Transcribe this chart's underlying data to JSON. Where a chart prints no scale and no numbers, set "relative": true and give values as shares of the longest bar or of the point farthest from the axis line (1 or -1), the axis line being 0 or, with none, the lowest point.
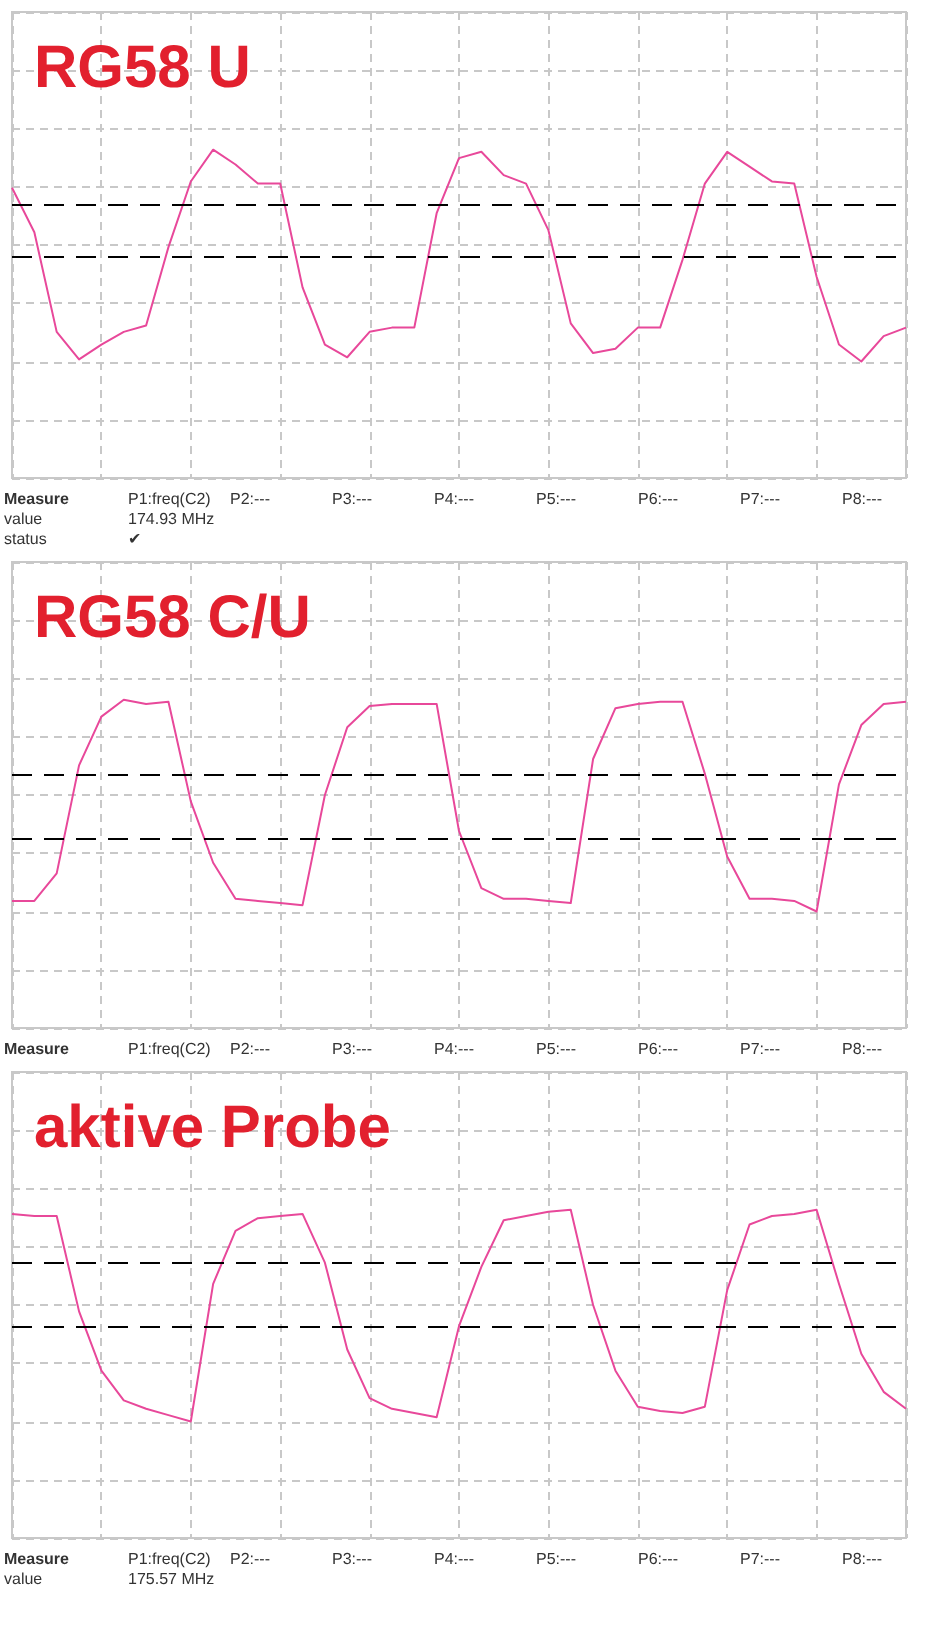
{
  "chart_data": [
    {
      "type": "line",
      "title": "RG58 U",
      "relative": true,
      "grid": true,
      "tick_labels": false,
      "marker": "none",
      "line_style": "solid",
      "categories": [
        null,
        null,
        null,
        null,
        null,
        null,
        null,
        null,
        null,
        null,
        null,
        null,
        null,
        null,
        null,
        null,
        null,
        null,
        null,
        null,
        null,
        null,
        null,
        null,
        null,
        null,
        null,
        null,
        null,
        null,
        null,
        null,
        null,
        null,
        null,
        null,
        null,
        null,
        null,
        null,
        null
      ],
      "series": [
        {
          "color": "#e8489a",
          "values": [
            0.82,
            0.61,
            0.14,
            0.01,
            0.08,
            0.14,
            0.17,
            0.54,
            0.85,
            1.0,
            0.93,
            0.84,
            0.84,
            0.35,
            0.08,
            0.02,
            0.14,
            0.16,
            0.16,
            0.7,
            0.96,
            0.99,
            0.88,
            0.84,
            0.62,
            0.18,
            0.04,
            0.06,
            0.16,
            0.16,
            0.48,
            0.84,
            0.99,
            0.92,
            0.85,
            0.84,
            0.4,
            0.08,
            0.0,
            0.12,
            0.16
          ]
        }
      ],
      "ref_lines": [
        {
          "axis": "y",
          "value": 0.74,
          "color": "#000000",
          "line_style": "dashed"
        },
        {
          "axis": "y",
          "value": 0.5,
          "color": "#000000",
          "line_style": "dashed"
        }
      ],
      "annotations": [
        "Measure",
        "P1:freq(C2)",
        "P2:---",
        "P3:---",
        "P4:---",
        "P5:---",
        "P6:---",
        "P7:---",
        "P8:---",
        "value",
        "174.93 MHz",
        "status",
        "✔"
      ]
    },
    {
      "type": "line",
      "title": "RG58 C/U",
      "relative": true,
      "grid": true,
      "tick_labels": false,
      "marker": "none",
      "line_style": "solid",
      "categories": [
        null,
        null,
        null,
        null,
        null,
        null,
        null,
        null,
        null,
        null,
        null,
        null,
        null,
        null,
        null,
        null,
        null,
        null,
        null,
        null,
        null,
        null,
        null,
        null,
        null,
        null,
        null,
        null,
        null,
        null,
        null,
        null,
        null,
        null,
        null,
        null,
        null,
        null,
        null,
        null,
        null
      ],
      "series": [
        {
          "color": "#e8489a",
          "values": [
            0.05,
            0.05,
            0.18,
            0.69,
            0.92,
            1.0,
            0.98,
            0.99,
            0.52,
            0.23,
            0.06,
            0.05,
            0.04,
            0.03,
            0.55,
            0.87,
            0.97,
            0.98,
            0.98,
            0.98,
            0.38,
            0.11,
            0.06,
            0.06,
            0.05,
            0.04,
            0.72,
            0.96,
            0.98,
            0.99,
            0.99,
            0.65,
            0.26,
            0.06,
            0.06,
            0.05,
            0.0,
            0.6,
            0.88,
            0.98,
            0.99
          ]
        }
      ],
      "ref_lines": [
        {
          "axis": "y",
          "value": 0.65,
          "color": "#000000",
          "line_style": "dashed"
        },
        {
          "axis": "y",
          "value": 0.34,
          "color": "#000000",
          "line_style": "dashed"
        }
      ],
      "annotations": [
        "Measure",
        "P1:freq(C2)",
        "P2:---",
        "P3:---",
        "P4:---",
        "P5:---",
        "P6:---",
        "P7:---",
        "P8:---"
      ]
    },
    {
      "type": "line",
      "title": "aktive Probe",
      "relative": true,
      "grid": true,
      "tick_labels": false,
      "marker": "none",
      "line_style": "solid",
      "categories": [
        null,
        null,
        null,
        null,
        null,
        null,
        null,
        null,
        null,
        null,
        null,
        null,
        null,
        null,
        null,
        null,
        null,
        null,
        null,
        null,
        null,
        null,
        null,
        null,
        null,
        null,
        null,
        null,
        null,
        null,
        null,
        null,
        null,
        null,
        null,
        null,
        null,
        null,
        null,
        null,
        null
      ],
      "series": [
        {
          "color": "#e8489a",
          "values": [
            0.98,
            0.97,
            0.97,
            0.52,
            0.24,
            0.1,
            0.06,
            0.03,
            0.0,
            0.65,
            0.9,
            0.96,
            0.97,
            0.98,
            0.75,
            0.34,
            0.11,
            0.06,
            0.04,
            0.02,
            0.45,
            0.73,
            0.95,
            0.97,
            0.99,
            1.0,
            0.55,
            0.24,
            0.07,
            0.05,
            0.04,
            0.07,
            0.62,
            0.93,
            0.97,
            0.98,
            1.0,
            0.65,
            0.32,
            0.14,
            0.06
          ]
        }
      ],
      "ref_lines": [
        {
          "axis": "y",
          "value": 0.75,
          "color": "#000000",
          "line_style": "dashed"
        },
        {
          "axis": "y",
          "value": 0.45,
          "color": "#000000",
          "line_style": "dashed"
        }
      ],
      "annotations": [
        "Measure",
        "P1:freq(C2)",
        "P2:---",
        "P3:---",
        "P4:---",
        "P5:---",
        "P6:---",
        "P7:---",
        "P8:---",
        "value",
        "175.57 MHz"
      ]
    }
  ]
}
